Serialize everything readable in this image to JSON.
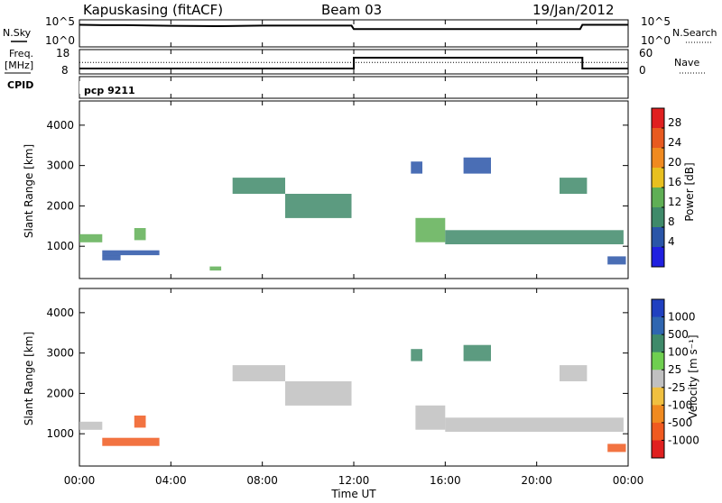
{
  "header": {
    "station": "Kapuskasing (fitACF)",
    "beam": "Beam 03",
    "date": "19/Jan/2012"
  },
  "labels": {
    "nsky": "N.Sky",
    "freq_line1": "Freq.",
    "freq_line2": "[MHz]",
    "cpid": "CPID",
    "nsearch": "N.Search",
    "nave": "Nave",
    "cpid_value": "pcp 9211",
    "ylabel_range": "Slant Range [km]",
    "xlabel": "Time UT",
    "power_cbar_label": "Power [dB]",
    "velocity_cbar_label": "Velocity [m s⁻¹]"
  },
  "ticks": {
    "noise_left": [
      "10^5",
      "10^0"
    ],
    "noise_right": [
      "10^5",
      "10^0"
    ],
    "freq_left": [
      "18",
      "8"
    ],
    "nave_right": [
      "60",
      "0"
    ],
    "range": [
      "4000",
      "3000",
      "2000",
      "1000"
    ],
    "time": [
      "00:00",
      "04:00",
      "08:00",
      "12:00",
      "16:00",
      "20:00",
      "00:00"
    ],
    "power": [
      "28",
      "24",
      "20",
      "16",
      "12",
      "8",
      "4"
    ],
    "velocity": [
      "1000",
      "500",
      "100",
      "25",
      "-25",
      "-100",
      "-500",
      "-1000"
    ]
  },
  "colors": {
    "power": [
      "#2020e0",
      "#2a55a8",
      "#3f8a6a",
      "#5faf55",
      "#e8c020",
      "#f08a20",
      "#e85a20",
      "#e02020"
    ],
    "velocity": [
      "#2040c0",
      "#2f66b0",
      "#3f8a6a",
      "#6fcf50",
      "#c0c0c0",
      "#f0c040",
      "#f08a20",
      "#f05a20",
      "#e02020"
    ]
  },
  "chart_data": [
    {
      "type": "line",
      "title": "Kapuskasing (fitACF)  Beam 03  19/Jan/2012",
      "panel": "noise",
      "ylabel": "N.Sky",
      "x_unit": "hours UT",
      "scale": "log",
      "ylim": [
        1,
        100000
      ],
      "series": [
        {
          "name": "N.Sky",
          "x": [
            0,
            1,
            2,
            3,
            4,
            6,
            8,
            10,
            11.9,
            12,
            14,
            16,
            18,
            20,
            21.9,
            22,
            24
          ],
          "y": [
            30000,
            25000,
            25000,
            22000,
            18000,
            15000,
            20000,
            20000,
            20000,
            3000,
            3000,
            3000,
            3000,
            3000,
            3000,
            30000,
            30000
          ]
        }
      ]
    },
    {
      "type": "line",
      "panel": "frequency",
      "ylabel": "Freq. [MHz]",
      "ylim": [
        8,
        18
      ],
      "y2label": "Nave",
      "y2lim": [
        0,
        60
      ],
      "series": [
        {
          "name": "Freq.",
          "x": [
            0,
            12,
            12,
            22,
            22,
            24
          ],
          "y": [
            10.5,
            10.5,
            15.5,
            15.5,
            10.5,
            10.5
          ]
        },
        {
          "name": "Nave",
          "x": [
            0,
            24
          ],
          "y": [
            32,
            32
          ]
        }
      ]
    },
    {
      "type": "scatter",
      "panel": "power",
      "ylabel": "Slant Range [km]",
      "colorbar": "Power [dB]",
      "xlim": [
        0,
        24
      ],
      "ylim": [
        200,
        4600
      ],
      "clim": [
        0,
        32
      ],
      "regions": [
        {
          "t0": 0.0,
          "t1": 1.0,
          "r0": 1100,
          "r1": 1300,
          "value": 14
        },
        {
          "t0": 1.0,
          "t1": 1.8,
          "r0": 650,
          "r1": 780,
          "value": 6
        },
        {
          "t0": 1.0,
          "t1": 3.5,
          "r0": 780,
          "r1": 900,
          "value": 6
        },
        {
          "t0": 2.4,
          "t1": 2.9,
          "r0": 1150,
          "r1": 1450,
          "value": 14
        },
        {
          "t0": 5.7,
          "t1": 6.2,
          "r0": 400,
          "r1": 500,
          "value": 12
        },
        {
          "t0": 6.7,
          "t1": 9.0,
          "r0": 2300,
          "r1": 2700,
          "value": 8
        },
        {
          "t0": 9.0,
          "t1": 11.9,
          "r0": 1700,
          "r1": 2300,
          "value": 8
        },
        {
          "t0": 14.7,
          "t1": 16.0,
          "r0": 1100,
          "r1": 1700,
          "value": 12
        },
        {
          "t0": 16.0,
          "t1": 23.8,
          "r0": 1050,
          "r1": 1400,
          "value": 10
        },
        {
          "t0": 16.8,
          "t1": 18.0,
          "r0": 2800,
          "r1": 3200,
          "value": 6
        },
        {
          "t0": 14.5,
          "t1": 15.0,
          "r0": 2800,
          "r1": 3100,
          "value": 6
        },
        {
          "t0": 21.0,
          "t1": 22.2,
          "r0": 2300,
          "r1": 2700,
          "value": 8
        },
        {
          "t0": 23.1,
          "t1": 23.9,
          "r0": 550,
          "r1": 750,
          "value": 6
        }
      ]
    },
    {
      "type": "scatter",
      "panel": "velocity",
      "ylabel": "Slant Range [km]",
      "colorbar": "Velocity [m s⁻¹]",
      "xlim": [
        0,
        24
      ],
      "ylim": [
        200,
        4600
      ],
      "clim": [
        -1000,
        1000
      ],
      "regions": [
        {
          "t0": 0.0,
          "t1": 1.0,
          "r0": 1100,
          "r1": 1300,
          "value": 0
        },
        {
          "t0": 1.0,
          "t1": 3.5,
          "r0": 700,
          "r1": 900,
          "value": -300
        },
        {
          "t0": 2.4,
          "t1": 2.9,
          "r0": 1150,
          "r1": 1450,
          "value": -700
        },
        {
          "t0": 6.7,
          "t1": 9.0,
          "r0": 2300,
          "r1": 2700,
          "value": 0
        },
        {
          "t0": 9.0,
          "t1": 11.9,
          "r0": 1700,
          "r1": 2300,
          "value": 0
        },
        {
          "t0": 14.7,
          "t1": 16.0,
          "r0": 1100,
          "r1": 1700,
          "value": 0
        },
        {
          "t0": 16.0,
          "t1": 23.8,
          "r0": 1050,
          "r1": 1400,
          "value": 0
        },
        {
          "t0": 16.8,
          "t1": 18.0,
          "r0": 2800,
          "r1": 3200,
          "value": 300
        },
        {
          "t0": 14.5,
          "t1": 15.0,
          "r0": 2800,
          "r1": 3100,
          "value": 300
        },
        {
          "t0": 21.0,
          "t1": 22.2,
          "r0": 2300,
          "r1": 2700,
          "value": 0
        },
        {
          "t0": 23.1,
          "t1": 23.9,
          "r0": 550,
          "r1": 750,
          "value": -300
        }
      ]
    }
  ]
}
